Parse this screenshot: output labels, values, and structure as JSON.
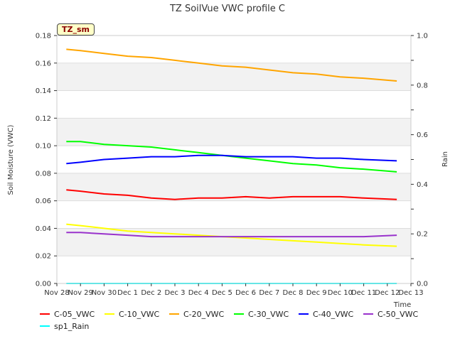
{
  "chart_data": {
    "type": "line",
    "title": "TZ SoilVue VWC profile C",
    "badge": "TZ_sm",
    "xlabel": "Time",
    "ylabel": "Soil Moisture (VWC)",
    "y2label": "Rain",
    "xlim": [
      0,
      15
    ],
    "ylim": [
      0,
      0.18
    ],
    "y2lim": [
      0,
      1.0
    ],
    "x_ticks": [
      "Nov 28",
      "Nov 29",
      "Nov 30",
      "Dec 1",
      "Dec 2",
      "Dec 3",
      "Dec 4",
      "Dec 5",
      "Dec 6",
      "Dec 7",
      "Dec 8",
      "Dec 9",
      "Dec 10",
      "Dec 11",
      "Dec 12",
      "Dec 13"
    ],
    "y_ticks": [
      "0.00",
      "0.02",
      "0.04",
      "0.06",
      "0.08",
      "0.10",
      "0.12",
      "0.14",
      "0.16",
      "0.18"
    ],
    "y2_ticks": [
      "0.0",
      "0.2",
      "0.4",
      "0.6",
      "0.8",
      "1.0"
    ],
    "grid": true,
    "legend_position": "bottom",
    "series": [
      {
        "name": "C-05_VWC",
        "color": "#ff0000",
        "axis": "left",
        "x": [
          0.4,
          1,
          2,
          3,
          4,
          5,
          6,
          7,
          8,
          9,
          10,
          11,
          12,
          13,
          14.4
        ],
        "y": [
          0.068,
          0.067,
          0.065,
          0.064,
          0.062,
          0.061,
          0.062,
          0.062,
          0.063,
          0.062,
          0.063,
          0.063,
          0.063,
          0.062,
          0.061
        ]
      },
      {
        "name": "C-10_VWC",
        "color": "#ffff00",
        "axis": "left",
        "x": [
          0.4,
          1,
          2,
          3,
          4,
          5,
          6,
          7,
          8,
          9,
          10,
          11,
          12,
          13,
          14.4
        ],
        "y": [
          0.043,
          0.042,
          0.04,
          0.038,
          0.037,
          0.036,
          0.035,
          0.034,
          0.033,
          0.032,
          0.031,
          0.03,
          0.029,
          0.028,
          0.027
        ]
      },
      {
        "name": "C-20_VWC",
        "color": "#ffa500",
        "axis": "left",
        "x": [
          0.4,
          1,
          2,
          3,
          4,
          5,
          6,
          7,
          8,
          9,
          10,
          11,
          12,
          13,
          14.4
        ],
        "y": [
          0.17,
          0.169,
          0.167,
          0.165,
          0.164,
          0.162,
          0.16,
          0.158,
          0.157,
          0.155,
          0.153,
          0.152,
          0.15,
          0.149,
          0.147
        ]
      },
      {
        "name": "C-30_VWC",
        "color": "#00ff00",
        "axis": "left",
        "x": [
          0.4,
          1,
          2,
          3,
          4,
          5,
          6,
          7,
          8,
          9,
          10,
          11,
          12,
          13,
          14.4
        ],
        "y": [
          0.103,
          0.103,
          0.101,
          0.1,
          0.099,
          0.097,
          0.095,
          0.093,
          0.091,
          0.089,
          0.087,
          0.086,
          0.084,
          0.083,
          0.081
        ]
      },
      {
        "name": "C-40_VWC",
        "color": "#0000ff",
        "axis": "left",
        "x": [
          0.4,
          1,
          2,
          3,
          4,
          5,
          6,
          7,
          8,
          9,
          10,
          11,
          12,
          13,
          14.4
        ],
        "y": [
          0.087,
          0.088,
          0.09,
          0.091,
          0.092,
          0.092,
          0.093,
          0.093,
          0.092,
          0.092,
          0.092,
          0.091,
          0.091,
          0.09,
          0.089
        ]
      },
      {
        "name": "C-50_VWC",
        "color": "#9932cc",
        "axis": "left",
        "x": [
          0.4,
          1,
          2,
          3,
          4,
          5,
          6,
          7,
          8,
          9,
          10,
          11,
          12,
          13,
          14.4
        ],
        "y": [
          0.037,
          0.037,
          0.036,
          0.035,
          0.034,
          0.034,
          0.034,
          0.034,
          0.034,
          0.034,
          0.034,
          0.034,
          0.034,
          0.034,
          0.035
        ]
      },
      {
        "name": "sp1_Rain",
        "color": "#00ffff",
        "axis": "right",
        "x": [
          0.4,
          14.4
        ],
        "y": [
          0.0,
          0.0
        ]
      }
    ]
  }
}
